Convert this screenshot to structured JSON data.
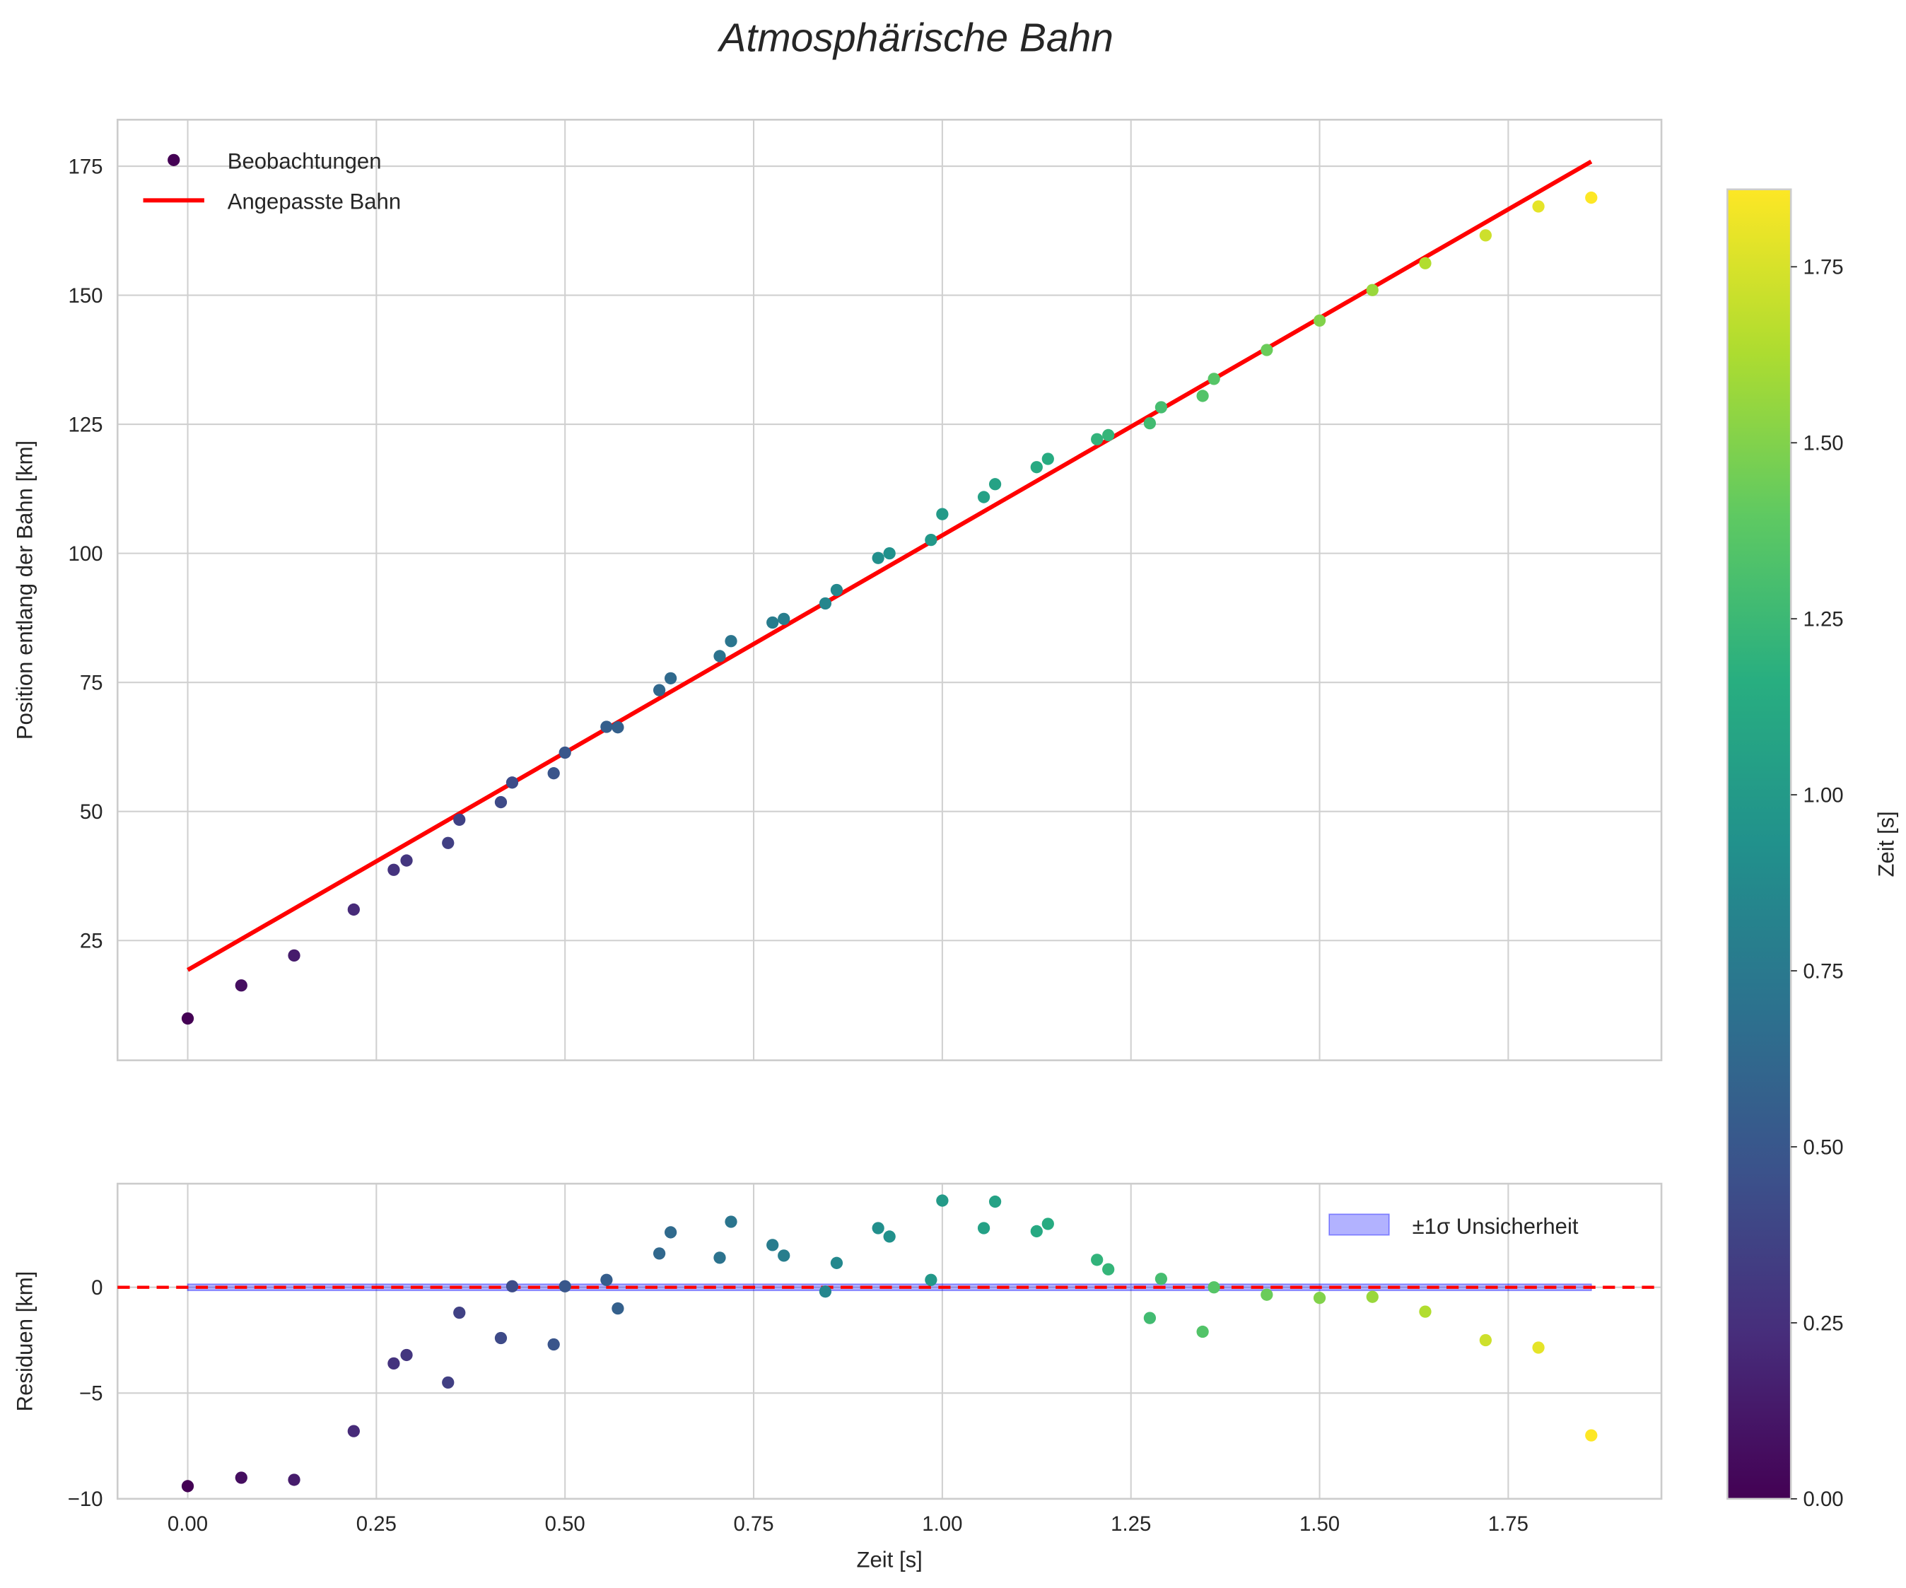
{
  "chart_data": [
    {
      "type": "scatter",
      "title": "Atmosphärische Bahn",
      "xlabel": "Zeit [s]",
      "ylabel": "Position entlang der Bahn [km]",
      "xlim": [
        -0.093,
        1.953
      ],
      "ylim": [
        1.8,
        184
      ],
      "grid": true,
      "xticks": [
        0,
        0.25,
        0.5,
        0.75,
        1.0,
        1.25,
        1.5,
        1.75
      ],
      "xtick_labels": [
        "0.00",
        "0.25",
        "0.50",
        "0.75",
        "1.00",
        "1.25",
        "1.50",
        "1.75"
      ],
      "yticks": [
        25,
        50,
        75,
        100,
        125,
        150,
        175
      ],
      "ytick_labels": [
        "25",
        "50",
        "75",
        "100",
        "125",
        "150",
        "175"
      ],
      "legend": {
        "placement": "top-left",
        "entries": [
          "Beobachtungen",
          "Angepasste Bahn"
        ]
      },
      "series": [
        {
          "name": "Beobachtungen",
          "kind": "scatter",
          "colormap": "viridis",
          "x": [
            0,
            0.071,
            0.141,
            0.22,
            0.273,
            0.29,
            0.345,
            0.36,
            0.415,
            0.43,
            0.485,
            0.5,
            0.555,
            0.57,
            0.625,
            0.64,
            0.705,
            0.72,
            0.775,
            0.79,
            0.845,
            0.86,
            0.915,
            0.93,
            0.985,
            1.0,
            1.055,
            1.07,
            1.125,
            1.14,
            1.205,
            1.22,
            1.275,
            1.29,
            1.345,
            1.36,
            1.43,
            1.5,
            1.57,
            1.64,
            1.72,
            1.79,
            1.86
          ],
          "y": [
            9.9,
            16.3,
            22.1,
            31.0,
            38.7,
            40.5,
            43.9,
            48.4,
            51.8,
            55.6,
            57.4,
            61.4,
            66.4,
            66.3,
            73.5,
            75.8,
            80.1,
            83.0,
            86.6,
            87.3,
            90.3,
            92.9,
            99.1,
            100.0,
            102.6,
            107.6,
            110.9,
            113.4,
            116.7,
            118.3,
            122.1,
            122.9,
            125.2,
            128.3,
            130.5,
            133.8,
            139.4,
            145.1,
            151.0,
            156.2,
            161.6,
            167.2,
            168.9
          ]
        },
        {
          "name": "Angepasste Bahn",
          "kind": "line",
          "color": "#ff0000",
          "x": [
            0,
            1.86
          ],
          "y": [
            19.3,
            175.9
          ]
        }
      ]
    },
    {
      "type": "scatter",
      "xlabel": "Zeit [s]",
      "ylabel": "Residuen [km]",
      "xlim": [
        -0.093,
        1.953
      ],
      "ylim": [
        -10,
        4.9
      ],
      "grid": true,
      "xticks": [
        0,
        0.25,
        0.5,
        0.75,
        1.0,
        1.25,
        1.5,
        1.75
      ],
      "xtick_labels": [
        "0.00",
        "0.25",
        "0.50",
        "0.75",
        "1.00",
        "1.25",
        "1.50",
        "1.75"
      ],
      "yticks": [
        -10,
        -5,
        0
      ],
      "ytick_labels": [
        "−10",
        "−5",
        "0"
      ],
      "legend": {
        "placement": "top-right",
        "entries": [
          "±1σ Unsicherheit"
        ]
      },
      "band": {
        "name": "±1σ Unsicherheit",
        "x": [
          0,
          1.86
        ],
        "sigma": 0.15,
        "color": "#0000ff"
      },
      "zero_line": {
        "y": 0,
        "color": "#ff0000",
        "style": "dashed"
      },
      "series": [
        {
          "name": "Residuen",
          "kind": "scatter",
          "colormap": "viridis",
          "x": [
            0,
            0.071,
            0.141,
            0.22,
            0.273,
            0.29,
            0.345,
            0.36,
            0.415,
            0.43,
            0.485,
            0.5,
            0.555,
            0.57,
            0.625,
            0.64,
            0.705,
            0.72,
            0.775,
            0.79,
            0.845,
            0.86,
            0.915,
            0.93,
            0.985,
            1.0,
            1.055,
            1.07,
            1.125,
            1.14,
            1.205,
            1.22,
            1.275,
            1.29,
            1.345,
            1.36,
            1.43,
            1.5,
            1.57,
            1.64,
            1.72,
            1.79,
            1.86
          ],
          "y": [
            -9.4,
            -9.0,
            -9.1,
            -6.8,
            -3.6,
            -3.2,
            -4.5,
            -1.2,
            -2.4,
            0.05,
            -2.7,
            0.05,
            0.35,
            -1.0,
            1.6,
            2.6,
            1.4,
            3.1,
            2.0,
            1.5,
            -0.2,
            1.15,
            2.8,
            2.4,
            0.35,
            4.1,
            2.8,
            4.05,
            2.65,
            3.0,
            1.3,
            0.85,
            -1.45,
            0.4,
            -2.1,
            0,
            -0.35,
            -0.5,
            -0.45,
            -1.15,
            -2.5,
            -2.85,
            -7.0
          ]
        }
      ]
    },
    {
      "type": "colorbar",
      "label": "Zeit [s]",
      "colormap": "viridis",
      "range": [
        0,
        1.86
      ],
      "ticks": [
        0,
        0.25,
        0.5,
        0.75,
        1.0,
        1.25,
        1.5,
        1.75
      ],
      "tick_labels": [
        "0.00",
        "0.25",
        "0.50",
        "0.75",
        "1.00",
        "1.25",
        "1.50",
        "1.75"
      ]
    }
  ]
}
